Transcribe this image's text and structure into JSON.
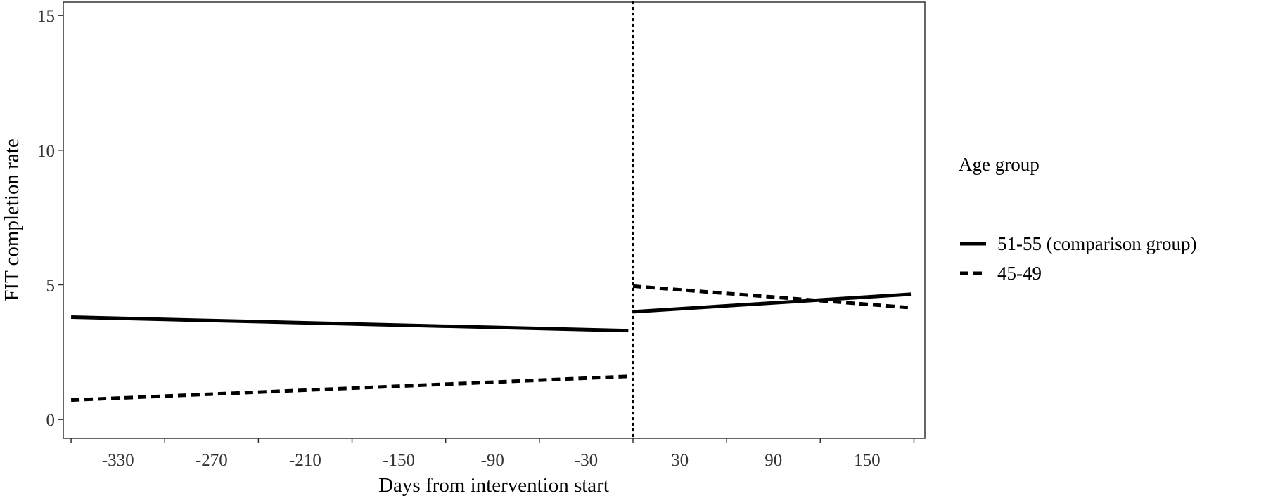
{
  "chart_data": {
    "type": "line",
    "title": "",
    "xlabel": "Days from intervention start",
    "ylabel": "FIT completion rate",
    "xlim": [
      -365,
      187
    ],
    "ylim": [
      -0.7,
      15.5
    ],
    "xticks": [
      -360,
      -300,
      -240,
      -180,
      -120,
      -60,
      0,
      60,
      120,
      180
    ],
    "xtick_labels": [
      -330,
      -270,
      -210,
      -150,
      -90,
      -30,
      30,
      90,
      150
    ],
    "yticks": [
      0,
      5,
      10,
      15
    ],
    "grid": false,
    "intervention_line_x": 0,
    "legend": {
      "title": "Age group",
      "position": "right"
    },
    "series": [
      {
        "name": "51-55 (comparison group)",
        "linetype": "solid",
        "segments": [
          {
            "x": [
              -360,
              -3
            ],
            "y": [
              3.8,
              3.3
            ]
          },
          {
            "x": [
              0,
              178
            ],
            "y": [
              4.0,
              4.65
            ]
          }
        ]
      },
      {
        "name": "45-49",
        "linetype": "dashed",
        "segments": [
          {
            "x": [
              -360,
              -3
            ],
            "y": [
              0.72,
              1.6
            ]
          },
          {
            "x": [
              0,
              178
            ],
            "y": [
              4.95,
              4.15
            ]
          }
        ]
      }
    ]
  }
}
